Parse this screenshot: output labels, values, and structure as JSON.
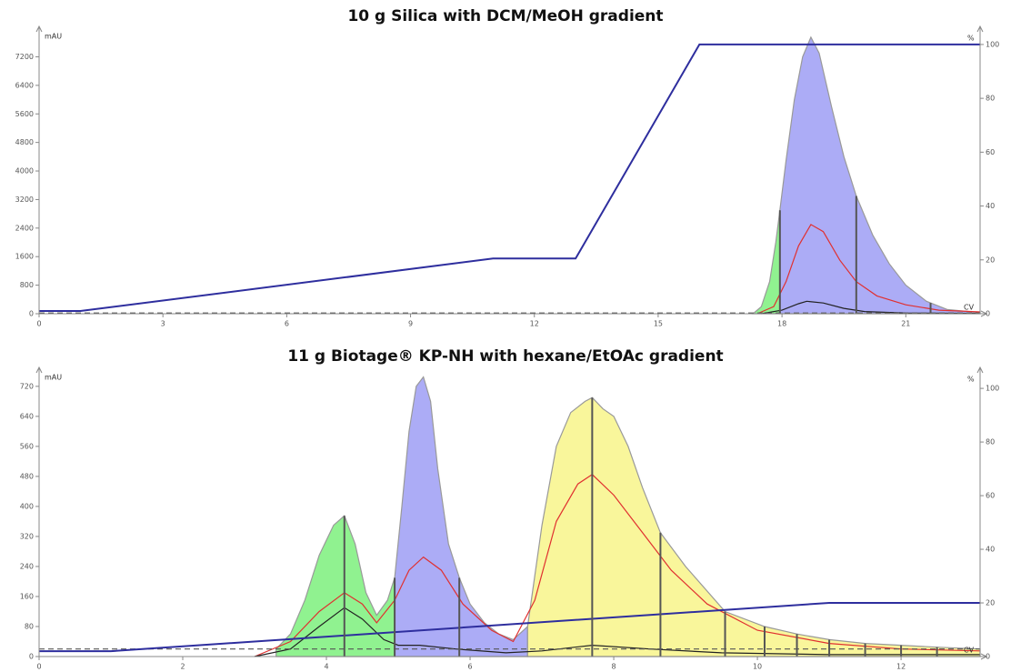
{
  "chart_data": [
    {
      "type": "area",
      "title": "10 g Silica with DCM/MeOH gradient",
      "ylabel": "mAU",
      "y2label": "%",
      "xlabel": "CV",
      "xlim": [
        0,
        22.8
      ],
      "xticks": [
        0,
        3,
        6,
        9,
        12,
        15,
        18,
        21
      ],
      "ylim": [
        0,
        7900
      ],
      "yticks": [
        0,
        800,
        1600,
        2400,
        3200,
        4000,
        4800,
        5600,
        6400,
        7200
      ],
      "y2lim": [
        0,
        104.7
      ],
      "y2ticks": [
        0,
        20,
        40,
        60,
        80,
        100
      ],
      "series": [
        {
          "color": "#7cf07c",
          "fill": true,
          "x": [
            17.3,
            17.5,
            17.7,
            17.85,
            17.95
          ],
          "values": [
            0,
            200,
            900,
            2000,
            2900
          ]
        },
        {
          "color": "#9e9ef5",
          "fill": true,
          "x": [
            17.95,
            18.1,
            18.3,
            18.5,
            18.7,
            18.9,
            19.2,
            19.5,
            19.8,
            20.2,
            20.6,
            21,
            21.5,
            22,
            22.8
          ],
          "values": [
            2900,
            4300,
            6000,
            7200,
            7750,
            7300,
            5800,
            4400,
            3300,
            2200,
            1400,
            800,
            350,
            120,
            30
          ]
        },
        {
          "color": "#e03030",
          "x": [
            17.4,
            17.8,
            18.1,
            18.4,
            18.7,
            19,
            19.4,
            19.8,
            20.3,
            21,
            21.8,
            22.8
          ],
          "values": [
            0,
            200,
            900,
            1900,
            2500,
            2300,
            1500,
            900,
            500,
            250,
            100,
            50
          ]
        },
        {
          "color": "#222222",
          "x": [
            17.5,
            18,
            18.4,
            18.6,
            19,
            19.5,
            20,
            21,
            22.8
          ],
          "values": [
            0,
            100,
            280,
            350,
            300,
            150,
            60,
            20,
            10
          ]
        },
        {
          "color": "#555555",
          "dash": true,
          "x": [
            0,
            22.8
          ],
          "values": [
            20,
            20
          ]
        },
        {
          "color": "#2e2e9e",
          "axis": "y2",
          "x": [
            0,
            1,
            11,
            13,
            16,
            22.8
          ],
          "values": [
            1,
            1,
            20.5,
            20.5,
            100,
            100
          ]
        }
      ],
      "fractions": [
        17.95,
        19.8,
        21.6
      ]
    },
    {
      "type": "area",
      "title": "11 g Biotage® KP-NH with hexane/EtOAc gradient",
      "ylabel": "mAU",
      "y2label": "%",
      "xlabel": "CV",
      "xlim": [
        0,
        13.1
      ],
      "xticks": [
        0,
        2,
        4,
        6,
        8,
        10,
        12
      ],
      "ylim": [
        0,
        756
      ],
      "yticks": [
        0,
        80,
        160,
        240,
        320,
        400,
        480,
        560,
        640,
        720
      ],
      "y2lim": [
        0,
        105.8
      ],
      "y2ticks": [
        0,
        20,
        40,
        60,
        80,
        100
      ],
      "series": [
        {
          "color": "#7cf07c",
          "fill": true,
          "x": [
            3.3,
            3.5,
            3.7,
            3.9,
            4.1,
            4.25,
            4.4,
            4.55,
            4.7,
            4.85,
            4.95
          ],
          "values": [
            20,
            60,
            150,
            270,
            350,
            375,
            300,
            170,
            110,
            150,
            210
          ]
        },
        {
          "color": "#9e9ef5",
          "fill": true,
          "x": [
            4.95,
            5.05,
            5.15,
            5.25,
            5.35,
            5.45,
            5.55,
            5.7,
            5.85,
            6.0,
            6.2,
            6.4,
            6.6,
            6.8
          ],
          "values": [
            210,
            400,
            600,
            720,
            745,
            680,
            500,
            300,
            210,
            140,
            90,
            60,
            45,
            80
          ]
        },
        {
          "color": "#f8f58a",
          "fill": true,
          "x": [
            6.8,
            7.0,
            7.2,
            7.4,
            7.6,
            7.7,
            7.85,
            8.0,
            8.2,
            8.4,
            8.65,
            9.0,
            9.55,
            10.1,
            10.55,
            11,
            11.5,
            12,
            12.5,
            13.1
          ],
          "values": [
            80,
            350,
            560,
            650,
            680,
            690,
            660,
            640,
            560,
            450,
            330,
            240,
            120,
            80,
            60,
            45,
            35,
            30,
            25,
            20
          ]
        },
        {
          "color": "#e03030",
          "x": [
            3.0,
            3.5,
            3.9,
            4.25,
            4.5,
            4.7,
            4.95,
            5.15,
            5.35,
            5.6,
            5.9,
            6.3,
            6.6,
            6.9,
            7.2,
            7.5,
            7.7,
            8.0,
            8.4,
            8.8,
            9.3,
            10,
            11,
            12,
            13.1
          ],
          "values": [
            0,
            40,
            120,
            170,
            140,
            90,
            150,
            230,
            265,
            230,
            140,
            70,
            40,
            150,
            360,
            460,
            485,
            430,
            330,
            230,
            140,
            70,
            35,
            20,
            15
          ]
        },
        {
          "color": "#222222",
          "x": [
            3.0,
            3.5,
            3.9,
            4.25,
            4.5,
            4.8,
            5.0,
            5.3,
            5.8,
            6.5,
            7.0,
            7.7,
            8.5,
            9.5,
            11,
            13.1
          ],
          "values": [
            0,
            20,
            80,
            130,
            100,
            45,
            30,
            30,
            20,
            10,
            15,
            30,
            20,
            10,
            5,
            5
          ]
        },
        {
          "color": "#555555",
          "dash": true,
          "x": [
            0,
            13.1
          ],
          "values": [
            20,
            20
          ]
        },
        {
          "color": "#2e2e9e",
          "axis": "y2",
          "x": [
            0,
            1,
            11,
            13.1
          ],
          "values": [
            2,
            2,
            20,
            20
          ]
        }
      ],
      "fractions": [
        4.25,
        4.95,
        5.85,
        7.7,
        8.65,
        9.55,
        10.1,
        10.55,
        11,
        11.5,
        12,
        12.5
      ]
    }
  ]
}
